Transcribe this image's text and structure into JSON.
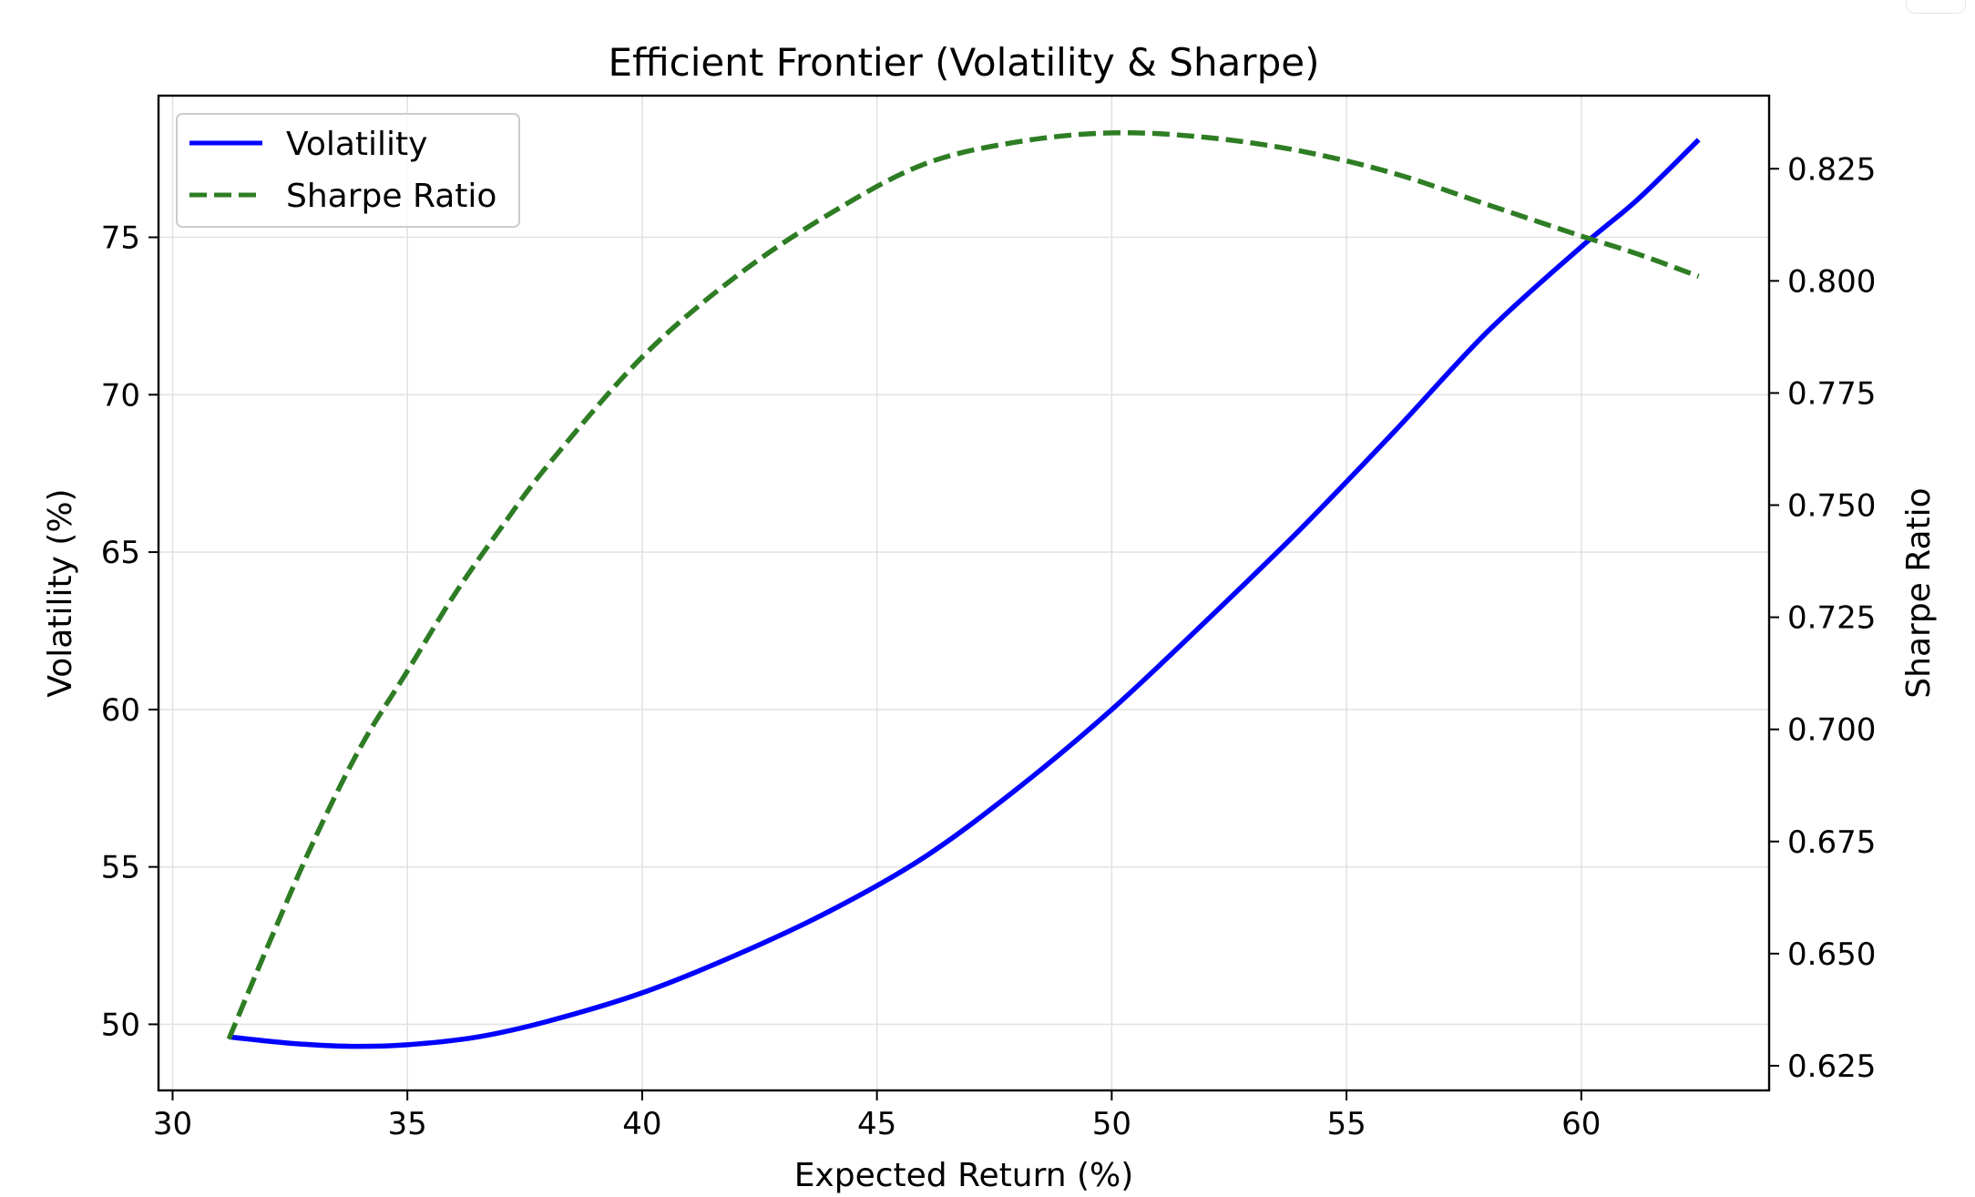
{
  "chart_data": {
    "type": "line",
    "title": "Efficient Frontier (Volatility & Sharpe)",
    "xlabel": "Expected Return (%)",
    "ylabel": "Volatility (%)",
    "y2label": "Sharpe Ratio",
    "xlim": [
      29.7,
      64
    ],
    "ylim": [
      47.9,
      79.5
    ],
    "y2lim": [
      0.6195,
      0.8413
    ],
    "xticks": [
      30,
      35,
      40,
      45,
      50,
      55,
      60
    ],
    "xtick_labels": [
      "30",
      "35",
      "40",
      "45",
      "50",
      "55",
      "60"
    ],
    "yticks": [
      50,
      55,
      60,
      65,
      70,
      75
    ],
    "ytick_labels": [
      "50",
      "55",
      "60",
      "65",
      "70",
      "75"
    ],
    "y2ticks": [
      0.625,
      0.65,
      0.675,
      0.7,
      0.725,
      0.75,
      0.775,
      0.8,
      0.825
    ],
    "y2tick_labels": [
      "0.625",
      "0.650",
      "0.675",
      "0.700",
      "0.725",
      "0.750",
      "0.775",
      "0.800",
      "0.825"
    ],
    "grid": true,
    "legend_position": "upper-left",
    "series": [
      {
        "name": "Volatility",
        "axis": "left",
        "color": "#0000ff",
        "style": "solid",
        "x": [
          31.2,
          32.5,
          33.8,
          35.0,
          36.5,
          38.0,
          40.0,
          42.0,
          44.0,
          46.0,
          48.0,
          50.0,
          52.0,
          54.0,
          56.0,
          58.0,
          60.0,
          61.2,
          62.5
        ],
        "y": [
          49.6,
          49.4,
          49.3,
          49.35,
          49.6,
          50.1,
          51.0,
          52.2,
          53.6,
          55.3,
          57.5,
          60.0,
          62.8,
          65.7,
          68.8,
          72.0,
          74.7,
          76.2,
          78.1
        ]
      },
      {
        "name": "Sharpe Ratio",
        "axis": "right",
        "color": "#2e7d24",
        "style": "dashed",
        "x": [
          31.2,
          32.0,
          33.0,
          34.0,
          35.0,
          36.0,
          37.0,
          38.0,
          40.0,
          42.0,
          44.0,
          46.0,
          48.0,
          50.0,
          52.0,
          54.0,
          56.0,
          58.0,
          60.0,
          61.2,
          62.5
        ],
        "y": [
          0.631,
          0.651,
          0.675,
          0.696,
          0.713,
          0.73,
          0.745,
          0.759,
          0.783,
          0.801,
          0.815,
          0.826,
          0.831,
          0.833,
          0.832,
          0.829,
          0.824,
          0.817,
          0.81,
          0.806,
          0.801
        ]
      }
    ]
  }
}
